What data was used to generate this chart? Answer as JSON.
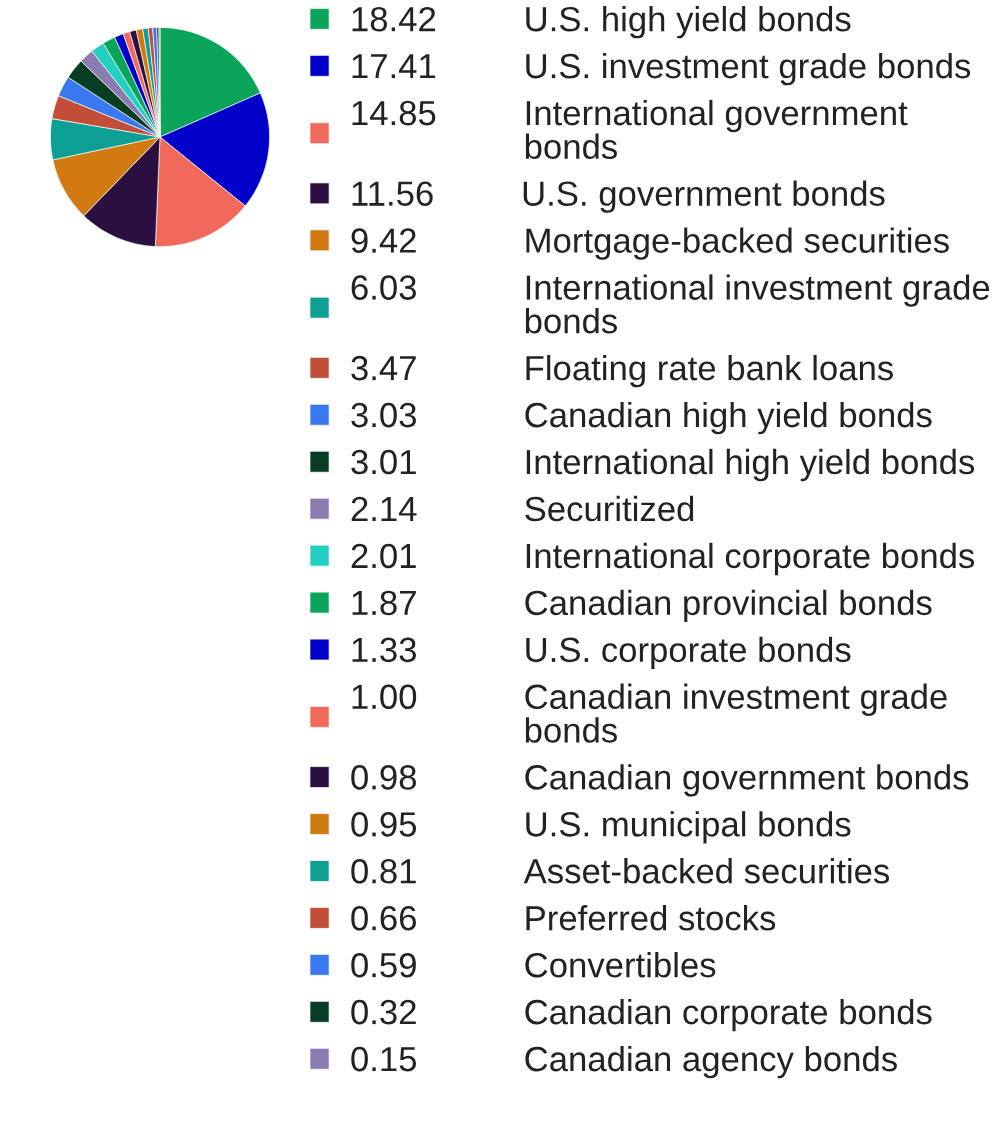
{
  "chart_data": {
    "type": "pie",
    "legend": "right",
    "data_labels": true,
    "categories": [
      "U.S. high yield bonds",
      "U.S. investment grade bonds",
      "International government bonds",
      "U.S. government bonds",
      "Mortgage-backed securities",
      "International investment grade bonds",
      "Floating rate bank loans",
      "Canadian high yield bonds",
      "International high yield bonds",
      "Securitized",
      "International corporate bonds",
      "Canadian provincial bonds",
      "U.S. corporate bonds",
      "Canadian investment grade bonds",
      "Canadian government bonds",
      "U.S. municipal bonds",
      "Asset-backed securities",
      "Preferred stocks",
      "Convertibles",
      "Canadian corporate bonds",
      "Canadian agency bonds"
    ],
    "values": [
      18.42,
      17.41,
      14.85,
      11.56,
      9.42,
      6.03,
      3.47,
      3.03,
      3.01,
      2.14,
      2.01,
      1.87,
      1.33,
      1.0,
      0.98,
      0.95,
      0.81,
      0.66,
      0.59,
      0.32,
      0.15
    ],
    "value_labels": [
      "18.42",
      "17.41",
      "14.85",
      "11.56",
      "9.42",
      "6.03",
      "3.47",
      "3.03",
      "3.01",
      "2.14",
      "2.01",
      "1.87",
      "1.33",
      "1.00",
      "0.98",
      "0.95",
      "0.81",
      "0.66",
      "0.59",
      "0.32",
      "0.15"
    ],
    "colors": [
      "#0aa55a",
      "#0000c8",
      "#f0695a",
      "#2a0f40",
      "#d17a12",
      "#0d9e94",
      "#c24e3a",
      "#3a78f0",
      "#073d22",
      "#8a7cb0",
      "#22cfc0",
      "#0aa55a",
      "#0000c8",
      "#f0695a",
      "#2a0f40",
      "#d17a12",
      "#0d9e94",
      "#c24e3a",
      "#3a78f0",
      "#073d22",
      "#8a7cb0"
    ]
  }
}
